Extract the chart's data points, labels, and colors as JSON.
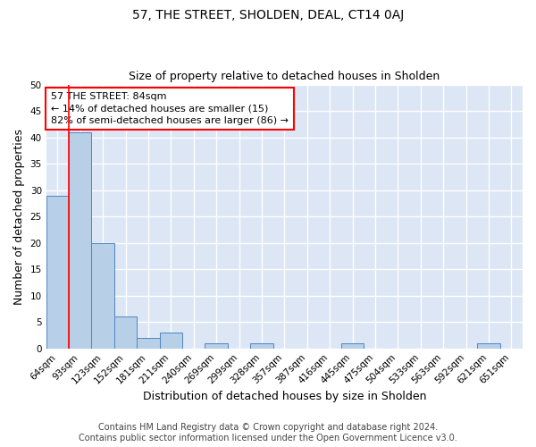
{
  "title": "57, THE STREET, SHOLDEN, DEAL, CT14 0AJ",
  "subtitle": "Size of property relative to detached houses in Sholden",
  "xlabel": "Distribution of detached houses by size in Sholden",
  "ylabel": "Number of detached properties",
  "categories": [
    "64sqm",
    "93sqm",
    "123sqm",
    "152sqm",
    "181sqm",
    "211sqm",
    "240sqm",
    "269sqm",
    "299sqm",
    "328sqm",
    "357sqm",
    "387sqm",
    "416sqm",
    "445sqm",
    "475sqm",
    "504sqm",
    "533sqm",
    "563sqm",
    "592sqm",
    "621sqm",
    "651sqm"
  ],
  "values": [
    29,
    41,
    20,
    6,
    2,
    3,
    0,
    1,
    0,
    1,
    0,
    0,
    0,
    1,
    0,
    0,
    0,
    0,
    0,
    1,
    0
  ],
  "bar_color": "#b8cfe8",
  "bar_edge_color": "#4f86c0",
  "red_line_x": 0.5,
  "annotation_text": "57 THE STREET: 84sqm\n← 14% of detached houses are smaller (15)\n82% of semi-detached houses are larger (86) →",
  "annotation_box_color": "white",
  "annotation_box_edge": "red",
  "ylim": [
    0,
    50
  ],
  "yticks": [
    0,
    5,
    10,
    15,
    20,
    25,
    30,
    35,
    40,
    45,
    50
  ],
  "footer_line1": "Contains HM Land Registry data © Crown copyright and database right 2024.",
  "footer_line2": "Contains public sector information licensed under the Open Government Licence v3.0.",
  "background_color": "#dce6f5",
  "grid_color": "white",
  "title_fontsize": 10,
  "subtitle_fontsize": 9,
  "axis_label_fontsize": 9,
  "tick_fontsize": 7.5,
  "footer_fontsize": 7
}
